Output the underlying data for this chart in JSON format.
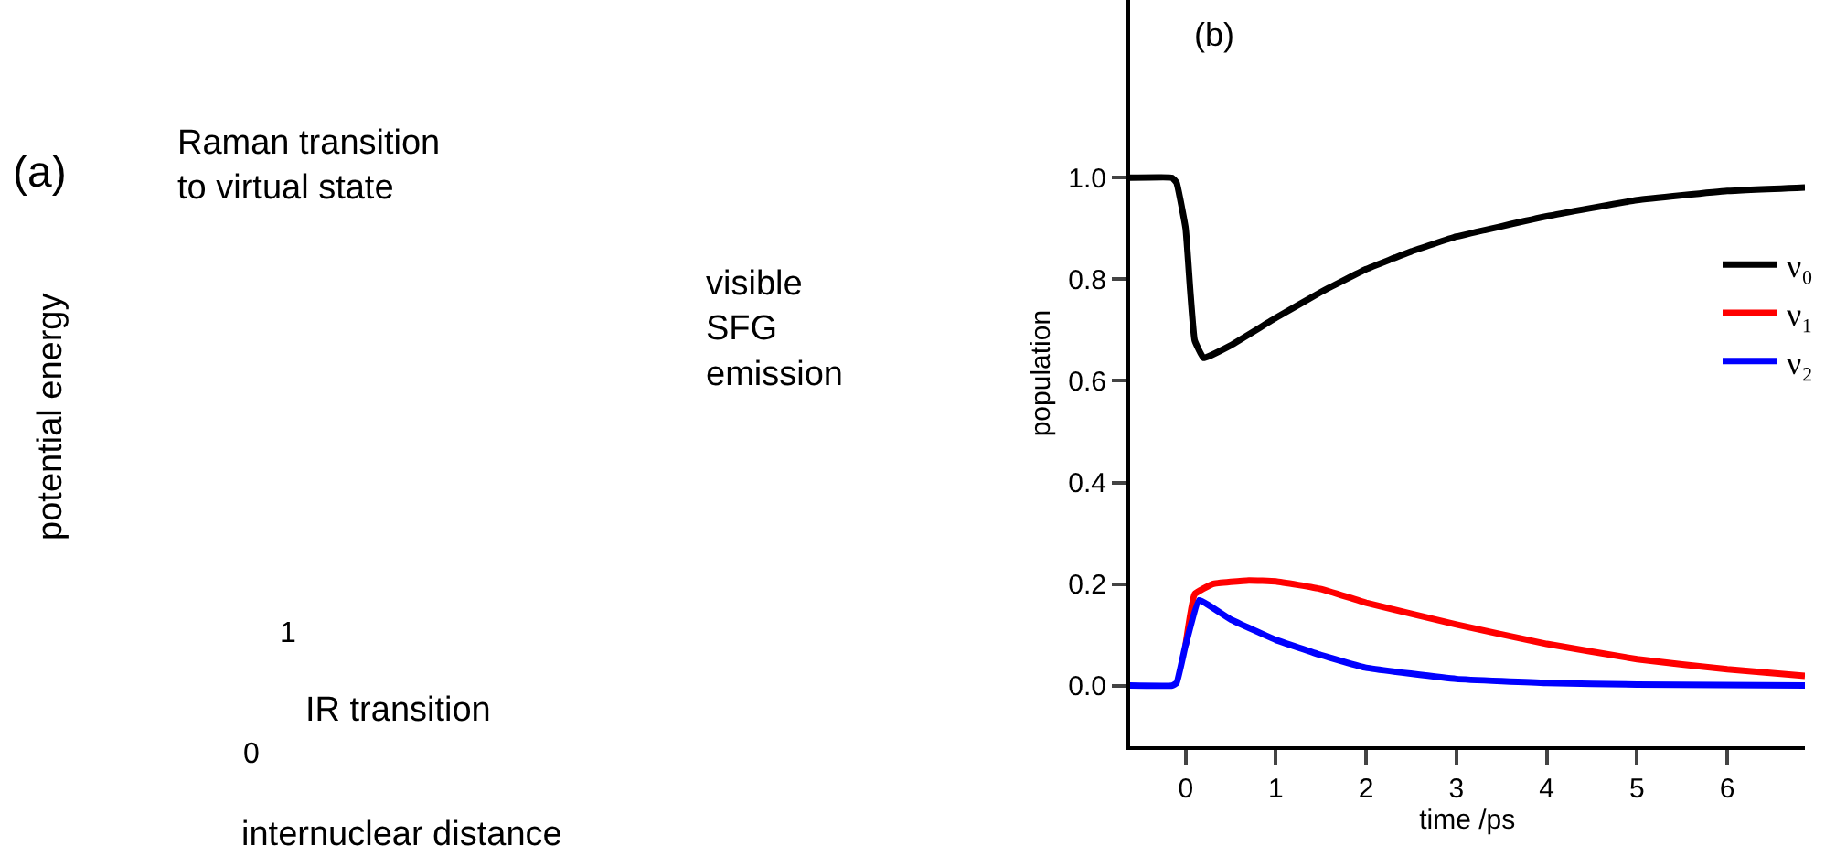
{
  "chart_data": [
    {
      "type": "other",
      "title": "(a)",
      "annotations": [
        "Raman transition\nto virtual state",
        "visible\nSFG\nemission",
        "potential energy",
        "internuclear distance",
        "IR transition",
        "0",
        "1"
      ]
    },
    {
      "type": "line",
      "title": "(b)",
      "xlabel": "time /ps",
      "ylabel": "population",
      "xlim": [
        -0.62,
        6.86
      ],
      "xticks": [
        0,
        1,
        2,
        3,
        4,
        5,
        6
      ],
      "ylim": [
        -0.12,
        1.35
      ],
      "yticks": [
        {
          "value": 0,
          "label": "0.0"
        },
        {
          "value": 0.2,
          "label": "0.2"
        },
        {
          "value": 0.4,
          "label": "0.4"
        },
        {
          "value": 0.6,
          "label": "0.6"
        },
        {
          "value": 0.8,
          "label": "0.8"
        },
        {
          "value": 1,
          "label": "1.0"
        }
      ],
      "legend": "right",
      "marker": "none",
      "line_style": "solid",
      "series": [
        {
          "name": "ν₀",
          "color": "#000000",
          "x": [
            -0.62,
            -0.15,
            -0.1,
            0,
            0.05,
            0.1,
            0.2,
            0.5,
            1,
            1.5,
            2,
            2.5,
            3,
            4,
            5,
            6,
            6.86
          ],
          "values": [
            1,
            1,
            0.99,
            0.9,
            0.78,
            0.68,
            0.645,
            0.67,
            0.724,
            0.775,
            0.82,
            0.855,
            0.884,
            0.924,
            0.956,
            0.974,
            0.981
          ]
        },
        {
          "name": "ν₁",
          "color": "#ff0000",
          "x": [
            0,
            0.1,
            0.3,
            0.7,
            1,
            1.5,
            2,
            3,
            4,
            5,
            6,
            6.86
          ],
          "values": [
            0.08,
            0.18,
            0.2,
            0.207,
            0.205,
            0.19,
            0.163,
            0.12,
            0.082,
            0.052,
            0.032,
            0.019
          ]
        },
        {
          "name": "ν₂",
          "color": "#0000ff",
          "x": [
            -0.62,
            -0.15,
            -0.1,
            0,
            0.15,
            0.5,
            1,
            1.5,
            2,
            3,
            4,
            5,
            6.86
          ],
          "values": [
            0,
            0,
            0.005,
            0.08,
            0.168,
            0.13,
            0.09,
            0.06,
            0.035,
            0.013,
            0.005,
            0.002,
            0
          ]
        }
      ]
    }
  ]
}
